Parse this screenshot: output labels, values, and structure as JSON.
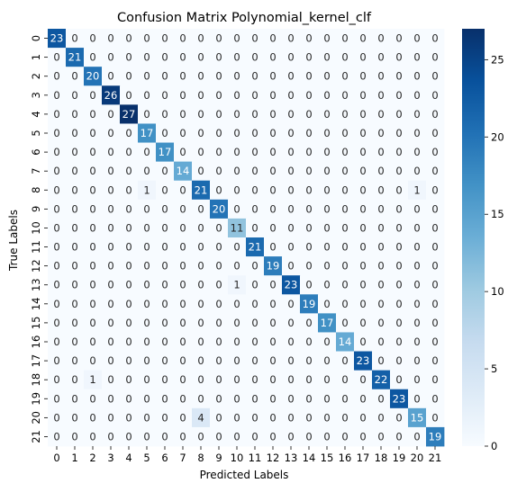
{
  "chart_data": {
    "type": "heatmap",
    "title": "Confusion Matrix Polynomial_kernel_clf",
    "xlabel": "Predicted Labels",
    "ylabel": "True Labels",
    "x_categories": [
      "0",
      "1",
      "2",
      "3",
      "4",
      "5",
      "6",
      "7",
      "8",
      "9",
      "10",
      "11",
      "12",
      "13",
      "14",
      "15",
      "16",
      "17",
      "18",
      "19",
      "20",
      "21"
    ],
    "y_categories": [
      "0",
      "1",
      "2",
      "3",
      "4",
      "5",
      "6",
      "7",
      "8",
      "9",
      "10",
      "11",
      "12",
      "13",
      "14",
      "15",
      "16",
      "17",
      "18",
      "19",
      "20",
      "21"
    ],
    "matrix": [
      [
        23,
        0,
        0,
        0,
        0,
        0,
        0,
        0,
        0,
        0,
        0,
        0,
        0,
        0,
        0,
        0,
        0,
        0,
        0,
        0,
        0,
        0
      ],
      [
        0,
        21,
        0,
        0,
        0,
        0,
        0,
        0,
        0,
        0,
        0,
        0,
        0,
        0,
        0,
        0,
        0,
        0,
        0,
        0,
        0,
        0
      ],
      [
        0,
        0,
        20,
        0,
        0,
        0,
        0,
        0,
        0,
        0,
        0,
        0,
        0,
        0,
        0,
        0,
        0,
        0,
        0,
        0,
        0,
        0
      ],
      [
        0,
        0,
        0,
        26,
        0,
        0,
        0,
        0,
        0,
        0,
        0,
        0,
        0,
        0,
        0,
        0,
        0,
        0,
        0,
        0,
        0,
        0
      ],
      [
        0,
        0,
        0,
        0,
        27,
        0,
        0,
        0,
        0,
        0,
        0,
        0,
        0,
        0,
        0,
        0,
        0,
        0,
        0,
        0,
        0,
        0
      ],
      [
        0,
        0,
        0,
        0,
        0,
        17,
        0,
        0,
        0,
        0,
        0,
        0,
        0,
        0,
        0,
        0,
        0,
        0,
        0,
        0,
        0,
        0
      ],
      [
        0,
        0,
        0,
        0,
        0,
        0,
        17,
        0,
        0,
        0,
        0,
        0,
        0,
        0,
        0,
        0,
        0,
        0,
        0,
        0,
        0,
        0
      ],
      [
        0,
        0,
        0,
        0,
        0,
        0,
        0,
        14,
        0,
        0,
        0,
        0,
        0,
        0,
        0,
        0,
        0,
        0,
        0,
        0,
        0,
        0
      ],
      [
        0,
        0,
        0,
        0,
        0,
        1,
        0,
        0,
        21,
        0,
        0,
        0,
        0,
        0,
        0,
        0,
        0,
        0,
        0,
        0,
        1,
        0
      ],
      [
        0,
        0,
        0,
        0,
        0,
        0,
        0,
        0,
        0,
        20,
        0,
        0,
        0,
        0,
        0,
        0,
        0,
        0,
        0,
        0,
        0,
        0
      ],
      [
        0,
        0,
        0,
        0,
        0,
        0,
        0,
        0,
        0,
        0,
        11,
        0,
        0,
        0,
        0,
        0,
        0,
        0,
        0,
        0,
        0,
        0
      ],
      [
        0,
        0,
        0,
        0,
        0,
        0,
        0,
        0,
        0,
        0,
        0,
        21,
        0,
        0,
        0,
        0,
        0,
        0,
        0,
        0,
        0,
        0
      ],
      [
        0,
        0,
        0,
        0,
        0,
        0,
        0,
        0,
        0,
        0,
        0,
        0,
        19,
        0,
        0,
        0,
        0,
        0,
        0,
        0,
        0,
        0
      ],
      [
        0,
        0,
        0,
        0,
        0,
        0,
        0,
        0,
        0,
        0,
        1,
        0,
        0,
        23,
        0,
        0,
        0,
        0,
        0,
        0,
        0,
        0
      ],
      [
        0,
        0,
        0,
        0,
        0,
        0,
        0,
        0,
        0,
        0,
        0,
        0,
        0,
        0,
        19,
        0,
        0,
        0,
        0,
        0,
        0,
        0
      ],
      [
        0,
        0,
        0,
        0,
        0,
        0,
        0,
        0,
        0,
        0,
        0,
        0,
        0,
        0,
        0,
        17,
        0,
        0,
        0,
        0,
        0,
        0
      ],
      [
        0,
        0,
        0,
        0,
        0,
        0,
        0,
        0,
        0,
        0,
        0,
        0,
        0,
        0,
        0,
        0,
        14,
        0,
        0,
        0,
        0,
        0
      ],
      [
        0,
        0,
        0,
        0,
        0,
        0,
        0,
        0,
        0,
        0,
        0,
        0,
        0,
        0,
        0,
        0,
        0,
        23,
        0,
        0,
        0,
        0
      ],
      [
        0,
        0,
        1,
        0,
        0,
        0,
        0,
        0,
        0,
        0,
        0,
        0,
        0,
        0,
        0,
        0,
        0,
        0,
        22,
        0,
        0,
        0
      ],
      [
        0,
        0,
        0,
        0,
        0,
        0,
        0,
        0,
        0,
        0,
        0,
        0,
        0,
        0,
        0,
        0,
        0,
        0,
        0,
        23,
        0,
        0
      ],
      [
        0,
        0,
        0,
        0,
        0,
        0,
        0,
        0,
        4,
        0,
        0,
        0,
        0,
        0,
        0,
        0,
        0,
        0,
        0,
        0,
        15,
        0
      ],
      [
        0,
        0,
        0,
        0,
        0,
        0,
        0,
        0,
        0,
        0,
        0,
        0,
        0,
        0,
        0,
        0,
        0,
        0,
        0,
        0,
        0,
        19
      ]
    ],
    "vmin": 0,
    "vmax": 27,
    "colorbar_ticks": [
      0,
      5,
      10,
      15,
      20,
      25
    ],
    "colormap": "Blues",
    "grid": false
  }
}
